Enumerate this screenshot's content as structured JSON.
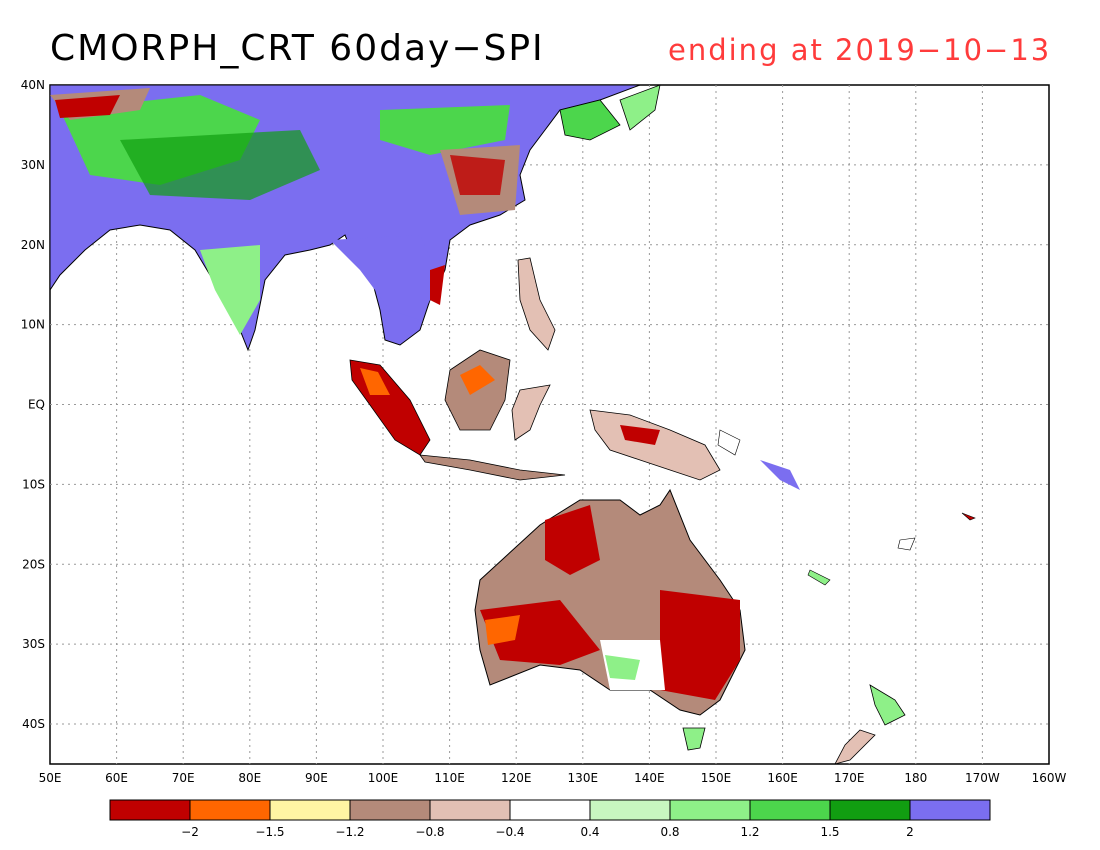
{
  "title": {
    "main": "CMORPH_CRT 60day−SPI",
    "date": "ending at 2019−10−13",
    "date_color": "#ff3b3b"
  },
  "map": {
    "lat_ticks": [
      "40N",
      "30N",
      "20N",
      "10N",
      "EQ",
      "10S",
      "20S",
      "30S",
      "40S"
    ],
    "lon_ticks": [
      "50E",
      "60E",
      "70E",
      "80E",
      "90E",
      "100E",
      "110E",
      "120E",
      "130E",
      "140E",
      "150E",
      "160E",
      "170E",
      "180",
      "170W",
      "160W"
    ]
  },
  "legend": {
    "colors": [
      "#c00000",
      "#ff6600",
      "#fff5a3",
      "#b48a7a",
      "#e3c0b4",
      "#ffffff",
      "#c8f7c0",
      "#8ef088",
      "#4cd64c",
      "#119e11",
      "#7b6ef0"
    ],
    "labels": [
      "−2",
      "−1.5",
      "−1.2",
      "−0.8",
      "−0.4",
      "0.4",
      "0.8",
      "1.2",
      "1.5",
      "2"
    ]
  }
}
